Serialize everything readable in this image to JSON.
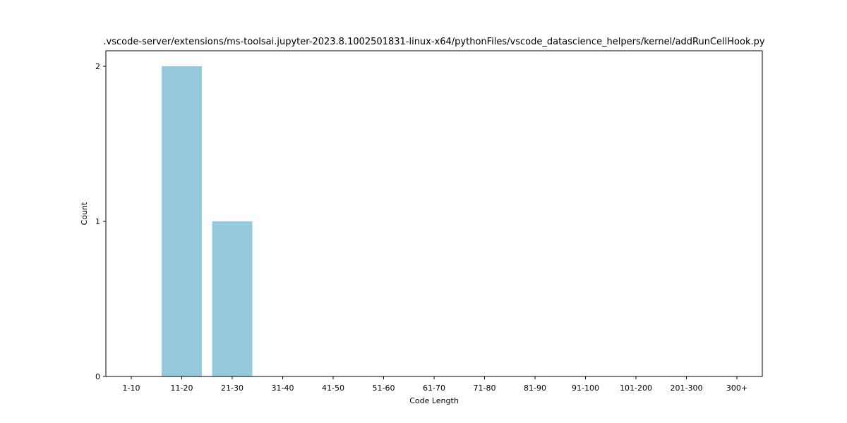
{
  "chart_data": {
    "type": "bar",
    "title": ".vscode-server/extensions/ms-toolsai.jupyter-2023.8.1002501831-linux-x64/pythonFiles/vscode_datascience_helpers/kernel/addRunCellHook.py",
    "xlabel": "Code Length",
    "ylabel": "Count",
    "categories": [
      "1-10",
      "11-20",
      "21-30",
      "31-40",
      "41-50",
      "51-60",
      "61-70",
      "71-80",
      "81-90",
      "91-100",
      "101-200",
      "201-300",
      "300+"
    ],
    "values": [
      0,
      2,
      1,
      0,
      0,
      0,
      0,
      0,
      0,
      0,
      0,
      0,
      0
    ],
    "ylim": [
      0,
      2.1
    ],
    "yticks": [
      0,
      1,
      2
    ],
    "bar_color": "#96c9dc",
    "grid": false,
    "legend": "none"
  }
}
